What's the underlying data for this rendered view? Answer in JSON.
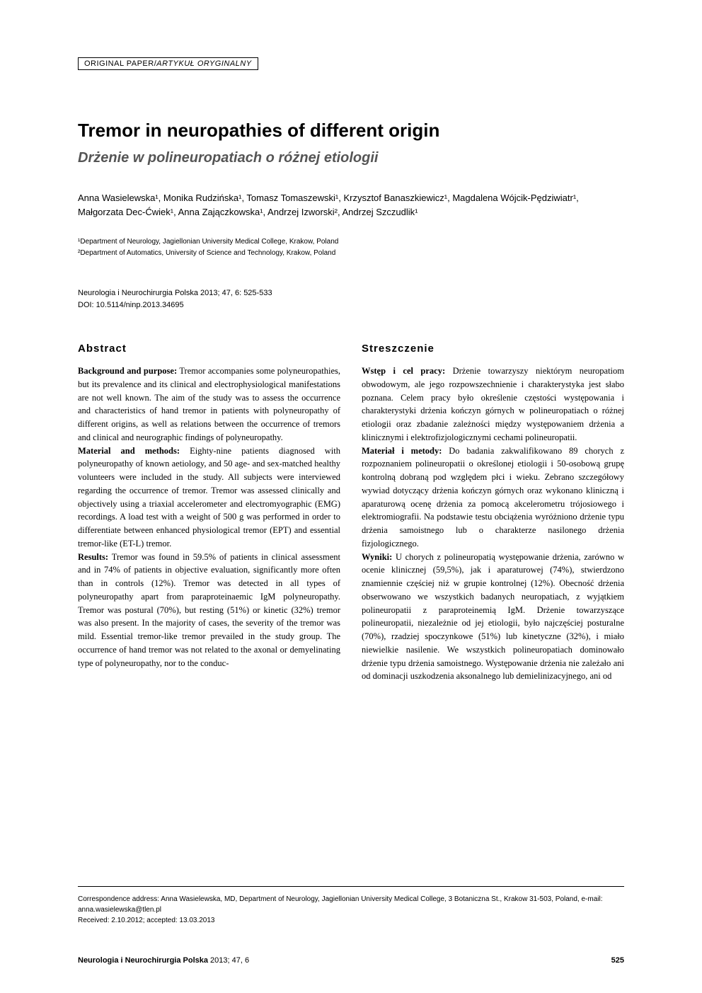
{
  "article_type": {
    "main": "ORIGINAL PAPER/",
    "italic": "ARTYKUŁ ORYGINALNY"
  },
  "title": "Tremor in neuropathies of different origin",
  "subtitle": "Drżenie w polineuropatiach o różnej etiologii",
  "authors_line1": "Anna Wasielewska¹, Monika Rudzińska¹, Tomasz Tomaszewski¹, Krzysztof Banaszkiewicz¹, Magdalena Wójcik-Pędziwiatr¹,",
  "authors_line2": "Małgorzata Dec-Ćwiek¹, Anna Zajączkowska¹, Andrzej Izworski², Andrzej Szczudlik¹",
  "affiliations": {
    "a1": "¹Department of Neurology, Jagiellonian University Medical College, Krakow, Poland",
    "a2": "²Department of Automatics, University of Science and Technology, Krakow, Poland"
  },
  "citation": {
    "line1": "Neurologia i Neurochirurgia Polska 2013; 47, 6: 525-533",
    "line2": "DOI: 10.5114/ninp.2013.34695"
  },
  "abstract": {
    "header": "Abstract",
    "background_label": "Background and purpose:",
    "background_text": " Tremor accompanies some polyneuropathies, but its prevalence and its clinical and electrophysiological manifestations are not well known. The aim of the study was to assess the occurrence and characteristics of hand tremor in patients with polyneuropathy of different origins, as well as relations between the occurrence of tremors and clinical and neurographic findings of polyneuropathy.",
    "material_label": "Material and methods:",
    "material_text": " Eighty-nine patients diagnosed with polyneuropathy of known aetiology, and 50 age- and sex-matched healthy volunteers were included in the study. All subjects were interviewed regarding the occurrence of tremor. Tremor was assessed clinically and objectively using a triaxial accelerometer and electromyographic (EMG) recordings. A load test with a weight of 500 g was performed in order to differentiate between enhanced physiological tremor (EPT) and essential tremor-like (ET-L) tremor.",
    "results_label": "Results:",
    "results_text": " Tremor was found in 59.5% of patients in clinical assessment and in 74% of patients in objective evaluation, significantly more often than in controls (12%). Tremor was detected in all types of polyneuropathy apart from paraproteinaemic IgM polyneuropathy. Tremor was postural (70%), but resting (51%) or kinetic (32%) tremor was also present. In the majority of cases, the severity of the tremor was mild. Essential tremor-like tremor prevailed in the study group. The occurrence of hand tremor was not related to the axonal or demyelinating type of polyneuropathy, nor to the conduc-"
  },
  "streszczenie": {
    "header": "Streszczenie",
    "wstep_label": "Wstęp i cel pracy:",
    "wstep_text": " Drżenie towarzyszy niektórym neuropatiom obwodowym, ale jego rozpowszechnienie i charakterystyka jest słabo poznana. Celem pracy było określenie częstości występowania i charakterystyki drżenia kończyn górnych w polineuropatiach o różnej etiologii oraz zbadanie zależności między występowaniem drżenia a klinicznymi i elektrofizjologicznymi cechami polineuropatii.",
    "material_label": "Materiał i metody:",
    "material_text": " Do badania zakwalifikowano 89 chorych z rozpoznaniem polineuropatii o określonej etiologii i 50-osobową grupę kontrolną dobraną pod względem płci i wieku. Zebrano szczegółowy wywiad dotyczący drżenia kończyn górnych oraz wykonano kliniczną i aparaturową ocenę drżenia za pomocą akcelerometru trójosiowego i elektromiografii. Na podstawie testu obciążenia wyróżniono drżenie typu drżenia samoistnego lub o charakterze nasilonego drżenia fizjologicznego.",
    "wyniki_label": "Wyniki:",
    "wyniki_text": " U chorych z polineuropatią występowanie drżenia, zarówno w ocenie klinicznej (59,5%), jak i aparaturowej (74%), stwierdzono znamiennie częściej niż w grupie kontrolnej (12%). Obecność drżenia obserwowano we wszystkich badanych neuropatiach, z wyjątkiem polineuropatii z paraproteinemią IgM. Drżenie towarzyszące polineuropatii, niezależnie od jej etiologii, było najczęściej posturalne (70%), rzadziej spoczynkowe (51%) lub kinetyczne (32%), i miało niewielkie nasilenie. We wszystkich polineuropatiach dominowało drżenie typu drżenia samoistnego. Występowanie drżenia nie zależało ani od dominacji uszkodzenia aksonalnego lub demielinizacyjnego, ani od"
  },
  "correspondence": {
    "line1": "Correspondence address: Anna Wasielewska, MD, Department of Neurology, Jagiellonian University Medical College, 3 Botaniczna St., Krakow 31-503, Poland, e-mail: anna.wasielewska@tlen.pl",
    "line2": "Received: 2.10.2012; accepted: 13.03.2013"
  },
  "footer": {
    "journal_bold": "Neurologia i Neurochirurgia Polska",
    "journal_rest": " 2013; 47, 6",
    "page": "525"
  }
}
